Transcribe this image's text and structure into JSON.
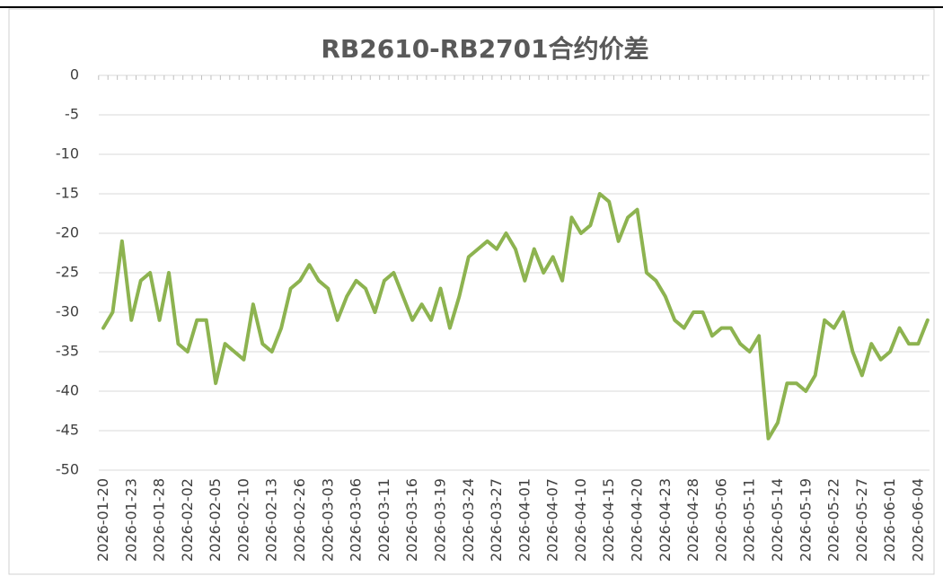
{
  "chart_data": {
    "type": "line",
    "title": "RB2610-RB2701合约价差",
    "categories": [
      "2026-01-20",
      null,
      null,
      "2026-01-23",
      null,
      null,
      "2026-01-28",
      null,
      null,
      "2026-02-02",
      null,
      null,
      "2026-02-05",
      null,
      null,
      "2026-02-10",
      null,
      null,
      "2026-02-13",
      null,
      null,
      "2026-02-26",
      null,
      null,
      "2026-03-03",
      null,
      null,
      "2026-03-06",
      null,
      null,
      "2026-03-11",
      null,
      null,
      "2026-03-16",
      null,
      null,
      "2026-03-19",
      null,
      null,
      "2026-03-24",
      null,
      null,
      "2026-03-27",
      null,
      null,
      "2026-04-01",
      null,
      null,
      "2026-04-07",
      null,
      null,
      "2026-04-10",
      null,
      null,
      "2026-04-15",
      null,
      null,
      "2026-04-20",
      null,
      null,
      "2026-04-23",
      null,
      null,
      "2026-04-28",
      null,
      null,
      "2026-05-06",
      null,
      null,
      "2026-05-11",
      null,
      null,
      "2026-05-14",
      null,
      null,
      "2026-05-19",
      null,
      null,
      "2026-05-22",
      null,
      null,
      "2026-05-27",
      null,
      null,
      "2026-06-01",
      null,
      null,
      "2026-06-04",
      null
    ],
    "values": [
      -32,
      -30,
      -21,
      -31,
      -26,
      -25,
      -31,
      -25,
      -34,
      -35,
      -31,
      -31,
      -39,
      -34,
      -35,
      -36,
      -29,
      -34,
      -35,
      -32,
      -27,
      -26,
      -24,
      -26,
      -27,
      -31,
      -28,
      -26,
      -27,
      -30,
      -26,
      -25,
      -28,
      -31,
      -29,
      -31,
      -27,
      -32,
      -28,
      -23,
      -22,
      -21,
      -22,
      -20,
      -22,
      -26,
      -22,
      -25,
      -23,
      -26,
      -18,
      -20,
      -19,
      -15,
      -16,
      -21,
      -18,
      -17,
      -25,
      -26,
      -28,
      -31,
      -32,
      -30,
      -30,
      -33,
      -32,
      -32,
      -34,
      -35,
      -33,
      -46,
      -44,
      -39,
      -39,
      -40,
      -38,
      -31,
      -32,
      -30,
      -35,
      -38,
      -34,
      -36,
      -35,
      -32,
      -34,
      -34,
      -31
    ],
    "color": "#8db350",
    "ylim": [
      -50,
      0
    ],
    "yticks": [
      0,
      -5,
      -10,
      -15,
      -20,
      -25,
      -30,
      -35,
      -40,
      -45,
      -50
    ],
    "grid": true
  }
}
